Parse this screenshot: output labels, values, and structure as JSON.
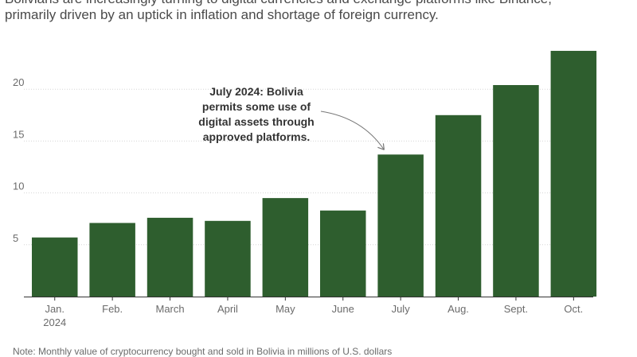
{
  "intro": {
    "line1": "Bolivians are increasingly turning to digital currencies and exchange platforms like Binance,",
    "line2": "primarily driven by an uptick in inflation and shortage of foreign currency."
  },
  "note": "Note: Monthly value of cryptocurrency bought and sold in Bolivia in millions of U.S. dollars",
  "chart_data": {
    "type": "bar",
    "categories": [
      "Jan.",
      "Feb.",
      "March",
      "April",
      "May",
      "June",
      "July",
      "Aug.",
      "Sept.",
      "Oct."
    ],
    "first_category_sublabel": "2024",
    "values": [
      5.7,
      7.1,
      7.6,
      7.3,
      9.5,
      8.3,
      13.7,
      17.5,
      20.4,
      23.7
    ],
    "ylim": [
      0,
      25
    ],
    "yticks": [
      5,
      10,
      15,
      20
    ],
    "grid": true,
    "bar_color": "#2e5e2e",
    "annotation": {
      "lines": [
        "July 2024: Bolivia",
        "permits some use of",
        "digital assets through",
        "approved platforms."
      ],
      "target_category": "July"
    }
  }
}
